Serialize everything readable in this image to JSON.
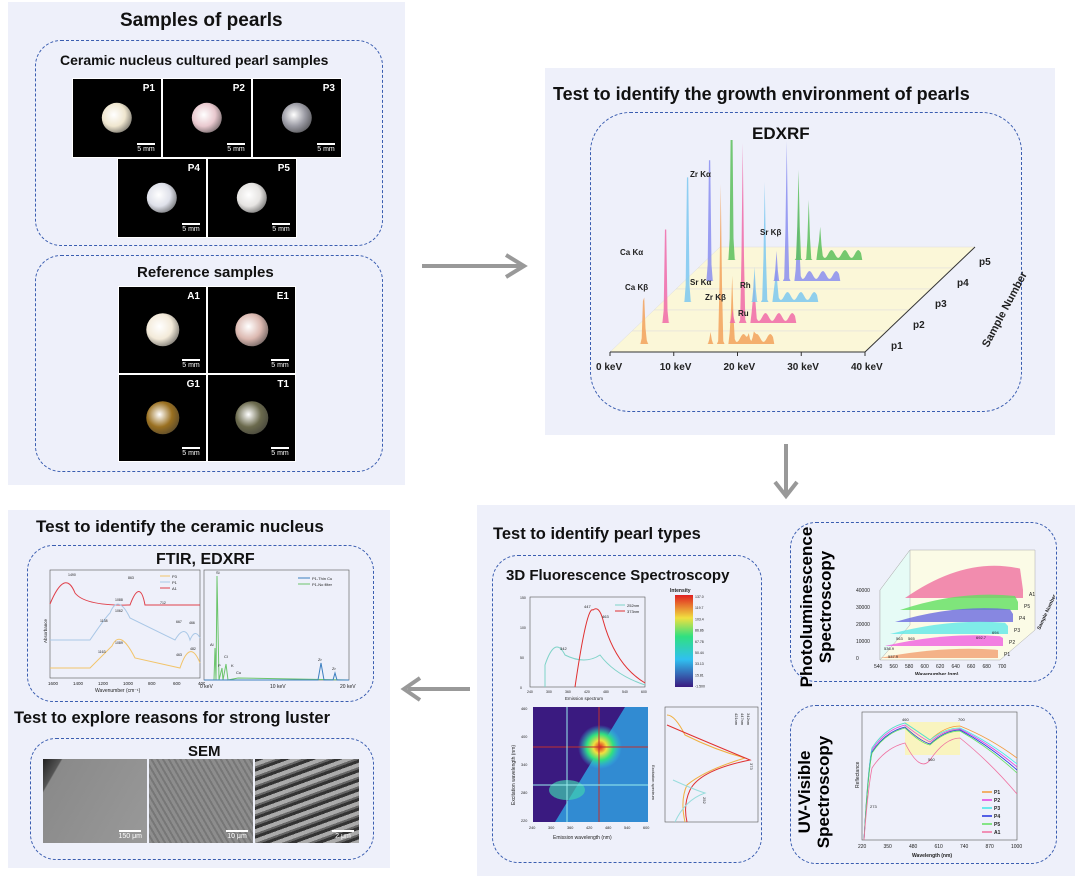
{
  "samples": {
    "title": "Samples of pearls",
    "ceramic": {
      "title": "Ceramic nucleus cultured pearl samples",
      "items": [
        {
          "label": "P1",
          "scale": "5 mm",
          "color": "#efe6cf"
        },
        {
          "label": "P2",
          "scale": "5 mm",
          "color": "#e9c9cf"
        },
        {
          "label": "P3",
          "scale": "5 mm",
          "color": "#9a9aa3"
        },
        {
          "label": "P4",
          "scale": "5 mm",
          "color": "#dfe1ea"
        },
        {
          "label": "P5",
          "scale": "5 mm",
          "color": "#e6e4e2"
        }
      ]
    },
    "reference": {
      "title": "Reference samples",
      "items": [
        {
          "label": "A1",
          "scale": "5 mm",
          "color": "#f3ead9"
        },
        {
          "label": "E1",
          "scale": "5 mm",
          "color": "#dcb9b1"
        },
        {
          "label": "G1",
          "scale": "5 mm",
          "color": "#9a7020"
        },
        {
          "label": "T1",
          "scale": "5 mm",
          "color": "#6b6a4d"
        }
      ]
    }
  },
  "growth": {
    "title": "Test to identify the growth environment of pearls",
    "edxrf": {
      "title": "EDXRF",
      "x_ticks": [
        "0 keV",
        "10 keV",
        "20 keV",
        "30 keV",
        "40 keV"
      ],
      "samples": [
        "p1",
        "p2",
        "p3",
        "p4",
        "p5"
      ],
      "depth_label": "Sample Number",
      "peak_labels": [
        "Ca Kα",
        "Ca Kβ",
        "Sr Kα",
        "Zr Kα",
        "Zr Kβ",
        "Sr Kβ",
        "Rh",
        "Ru"
      ],
      "colors": [
        "#f2a25c",
        "#f06aa8",
        "#7cc8f0",
        "#8a8ef0",
        "#5cc05c"
      ]
    }
  },
  "ceramic_nucleus": {
    "title": "Test to identify the ceramic nucleus",
    "subtitle": "FTIR, EDXRF",
    "ftir": {
      "ylabel": "Absorbance",
      "xlabel": "Wavenumber (cm⁻¹)",
      "x_ticks": [
        "1600",
        "1400",
        "1200",
        "1000",
        "800",
        "600",
        "400"
      ],
      "legend": [
        {
          "name": "P3",
          "color": "#f2c46a"
        },
        {
          "name": "P1",
          "color": "#a9c7e6"
        },
        {
          "name": "A1",
          "color": "#e0404a"
        }
      ],
      "peaks": [
        "1490",
        "863",
        "1088",
        "712",
        "1062",
        "1138",
        "667",
        "466",
        "1089",
        "1163",
        "463",
        "482"
      ]
    },
    "edxrf": {
      "x_ticks": [
        "0 keV",
        "10 keV",
        "20 keV"
      ],
      "legend": [
        {
          "name": "P1-Thin Cu",
          "color": "#3c7fc0"
        },
        {
          "name": "P1-No filter",
          "color": "#6cc56c"
        }
      ],
      "peaks": [
        "Si",
        "Al",
        "P",
        "Cl",
        "K",
        "Cu",
        "Zr",
        "Zr"
      ]
    }
  },
  "luster": {
    "title": "Test to explore reasons for strong luster",
    "sem": {
      "title": "SEM",
      "scales": [
        "150 μm",
        "10 μm",
        "2 μm"
      ]
    }
  },
  "pearl_types": {
    "title": "Test to identify pearl types",
    "fluorescence": {
      "title": "3D Fluorescence Spectroscopy",
      "emission": {
        "xlabel": "Emission spectrum",
        "x_ticks": [
          "240",
          "300",
          "360",
          "420",
          "480",
          "540",
          "600"
        ],
        "y_ticks": [
          "150",
          "100",
          "50",
          "0"
        ],
        "legend": [
          "252nm",
          "373nm"
        ],
        "peaks": [
          "342",
          "447",
          "463"
        ]
      },
      "colorbar": {
        "title": "Intensity",
        "ticks": [
          "137.0",
          "119.7",
          "103.4",
          "86.86",
          "67.78",
          "50.44",
          "33.13",
          "15.81",
          "-1.500"
        ]
      },
      "map": {
        "xlabel": "Emission wavelength (nm)",
        "ylabel": "Excitation wavelength (nm)",
        "x_ticks": [
          "240",
          "300",
          "360",
          "420",
          "480",
          "540",
          "600"
        ],
        "y_ticks": [
          "460",
          "400",
          "340",
          "280",
          "220"
        ]
      },
      "excitation": {
        "ylabel": "Excitation spectrum",
        "legend": [
          "421nm",
          "447nm",
          "342nm"
        ],
        "peaks": [
          "373",
          "252"
        ]
      }
    },
    "pl": {
      "title": "Photoluminescence Spectroscopy",
      "xlabel": "Wavenumber (nm)",
      "depth_label": "Sample Number",
      "x_ticks": [
        "540",
        "560",
        "580",
        "600",
        "620",
        "640",
        "660",
        "680",
        "700"
      ],
      "y_ticks": [
        "40000",
        "30000",
        "20000",
        "10000",
        "0"
      ],
      "samples": [
        "P1",
        "P2",
        "P3",
        "P4",
        "P5",
        "A1"
      ],
      "peaks": [
        "536.9",
        "537.9",
        "563",
        "565",
        "692.7",
        "694"
      ]
    },
    "uv": {
      "title": "UV-Visible Spectroscopy",
      "xlabel": "Wavelength (nm)",
      "ylabel": "Reflectance",
      "x_ticks": [
        "220",
        "350",
        "480",
        "610",
        "740",
        "870",
        "1000"
      ],
      "peaks": [
        "460",
        "700",
        "560",
        "273"
      ],
      "legend": [
        {
          "name": "P1",
          "color": "#f29a3a"
        },
        {
          "name": "P2",
          "color": "#e040e0"
        },
        {
          "name": "P3",
          "color": "#40e8e8"
        },
        {
          "name": "P4",
          "color": "#2030e0"
        },
        {
          "name": "P5",
          "color": "#60e060"
        },
        {
          "name": "A1",
          "color": "#f070a0"
        }
      ]
    }
  }
}
